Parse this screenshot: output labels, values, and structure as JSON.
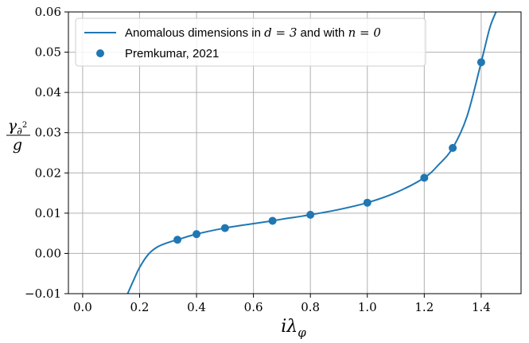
{
  "chart_data": {
    "type": "line",
    "title": "",
    "xlabel": "iλ_φ",
    "ylabel": "γ_∂² / g",
    "xlim": [
      -0.05,
      1.54
    ],
    "ylim": [
      -0.01,
      0.06
    ],
    "x_ticks": [
      "0.0",
      "0.2",
      "0.4",
      "0.6",
      "0.8",
      "1.0",
      "1.2",
      "1.4"
    ],
    "x_tick_values": [
      0.0,
      0.2,
      0.4,
      0.6,
      0.8,
      1.0,
      1.2,
      1.4
    ],
    "y_ticks": [
      "−0.01",
      "0.00",
      "0.01",
      "0.02",
      "0.03",
      "0.04",
      "0.05",
      "0.06"
    ],
    "y_tick_values": [
      -0.01,
      0.0,
      0.01,
      0.02,
      0.03,
      0.04,
      0.05,
      0.06
    ],
    "grid": true,
    "legend_position": "top-left",
    "series": [
      {
        "name": "Anomalous dimensions in d = 3 and with n = 0",
        "kind": "line",
        "color": "#1f77b4",
        "x": [
          0.158,
          0.18,
          0.2,
          0.23,
          0.26,
          0.3,
          0.333,
          0.4,
          0.5,
          0.6,
          0.667,
          0.7,
          0.8,
          0.9,
          1.0,
          1.1,
          1.2,
          1.25,
          1.3,
          1.35,
          1.4,
          1.43,
          1.452
        ],
        "y": [
          -0.01,
          -0.0065,
          -0.0035,
          -0.0003,
          0.0015,
          0.0027,
          0.0034,
          0.0048,
          0.0063,
          0.0074,
          0.0081,
          0.0085,
          0.0096,
          0.0109,
          0.0126,
          0.0151,
          0.0188,
          0.022,
          0.0262,
          0.034,
          0.0475,
          0.056,
          0.06
        ]
      },
      {
        "name": "Premkumar, 2021",
        "kind": "scatter",
        "color": "#1f77b4",
        "x": [
          0.333,
          0.4,
          0.5,
          0.667,
          0.8,
          1.0,
          1.2,
          1.3,
          1.4
        ],
        "y": [
          0.0034,
          0.0048,
          0.0063,
          0.0081,
          0.0096,
          0.0126,
          0.0188,
          0.0262,
          0.0475
        ]
      }
    ]
  },
  "legend": {
    "line_label_prefix": "Anomalous dimensions in",
    "line_label_d": "d = 3",
    "line_label_mid": "and with",
    "line_label_n": "n = 0",
    "scatter_label": "Premkumar, 2021"
  },
  "axis_text": {
    "x_main": "iλ",
    "x_sub": "φ",
    "y_num_main": "γ",
    "y_num_sub": "∂",
    "y_num_sup": "2",
    "y_den": "g"
  }
}
